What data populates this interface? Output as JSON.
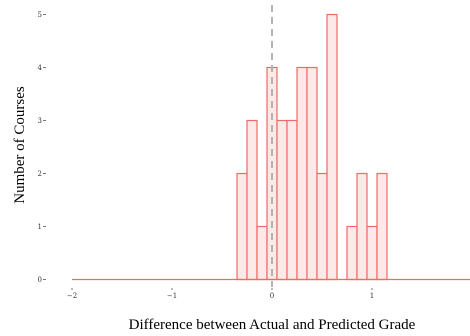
{
  "chart_data": {
    "type": "bar",
    "subtype": "histogram",
    "xlabel": "Difference between Actual and Predicted Grade",
    "ylabel": "Number of Courses",
    "x_ticks": [
      -2,
      -1,
      0,
      1
    ],
    "y_ticks": [
      0,
      1,
      2,
      3,
      4,
      5
    ],
    "xlim": [
      -2,
      2
    ],
    "ylim": [
      0,
      5
    ],
    "bin_width": 0.1,
    "bins": [
      {
        "start": -0.35,
        "end": -0.25,
        "count": 2
      },
      {
        "start": -0.25,
        "end": -0.15,
        "count": 3
      },
      {
        "start": -0.15,
        "end": -0.05,
        "count": 1
      },
      {
        "start": -0.05,
        "end": 0.05,
        "count": 4
      },
      {
        "start": 0.05,
        "end": 0.15,
        "count": 3
      },
      {
        "start": 0.15,
        "end": 0.25,
        "count": 3
      },
      {
        "start": 0.25,
        "end": 0.35,
        "count": 4
      },
      {
        "start": 0.35,
        "end": 0.45,
        "count": 4
      },
      {
        "start": 0.45,
        "end": 0.55,
        "count": 2
      },
      {
        "start": 0.55,
        "end": 0.65,
        "count": 5
      },
      {
        "start": 0.65,
        "end": 0.75,
        "count": 0
      },
      {
        "start": 0.75,
        "end": 0.85,
        "count": 1
      },
      {
        "start": 0.85,
        "end": 0.95,
        "count": 2
      },
      {
        "start": 0.95,
        "end": 1.05,
        "count": 1
      },
      {
        "start": 1.05,
        "end": 1.15,
        "count": 2
      }
    ],
    "reference_line_x": 0,
    "grid": false,
    "colors": {
      "bar_fill": "#fce9e8",
      "bar_stroke": "#ee6a66",
      "reference_line": "#b3b3b3"
    }
  }
}
